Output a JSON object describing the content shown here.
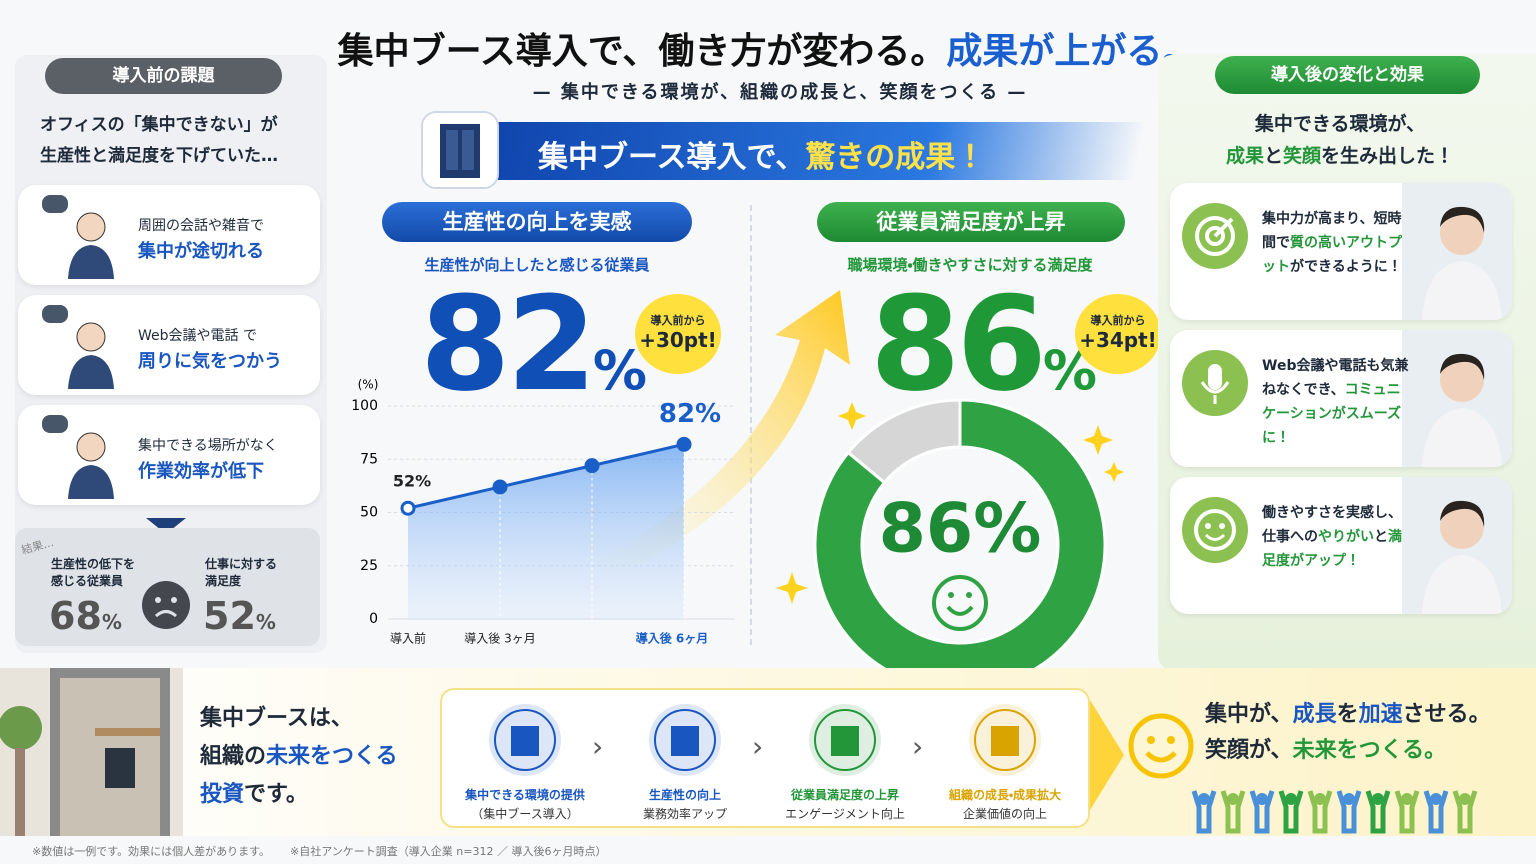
{
  "header": {
    "title": "集中ブース導入で、働き方が変わる。",
    "title_accent": "成果が上がる。",
    "subtitle": "集中できる環境が、組織の成長と、笑顔をつくる"
  },
  "before": {
    "title": "導入前の課題",
    "lead": [
      "オフィスの「集中できない」が",
      "生産性と満足度を下げていた…"
    ],
    "items": [
      {
        "text": "周囲の会話や雑音で",
        "highlight": "集中が途切れる"
      },
      {
        "text": "Web会議や電話 で",
        "highlight": "周りに気をつかう"
      },
      {
        "text": "集中できる場所がなく",
        "highlight": "作業効率が低下"
      }
    ],
    "result": {
      "label": "結果…",
      "stats": [
        {
          "label": [
            "生産性の低下を",
            "感じる従業員"
          ],
          "value": 68,
          "unit": "%"
        },
        {
          "label": [
            "仕事に対する",
            "満足度"
          ],
          "value": 52,
          "unit": "%"
        }
      ]
    }
  },
  "banner": {
    "text": "集中ブース導入で、",
    "accent": "驚きの成果！"
  },
  "productivity": {
    "title": "生産性の向上を実感",
    "subtitle": "生産性が向上したと感じる従業員",
    "value": 82,
    "unit": "%",
    "badge": [
      "導入前から",
      "+30pt!"
    ]
  },
  "satisfaction": {
    "title": "従業員満足度が上昇",
    "subtitle": "職場環境・働きやすさに対する満足度",
    "value": 86,
    "unit": "%",
    "badge": [
      "導入前から",
      "+34pt!"
    ]
  },
  "chart_data": [
    {
      "type": "line",
      "y_label": "(%)",
      "categories": [
        "導入前",
        "導入後 3ヶ月",
        null,
        "導入後 6ヶ月"
      ],
      "values": [
        52,
        62,
        72,
        82
      ],
      "value_labels": [
        "52%",
        null,
        null,
        "82%"
      ],
      "color": "#1a5fc8",
      "ylim": [
        0,
        100
      ],
      "yticks": [
        0,
        25,
        50,
        75,
        100
      ],
      "grid": true
    },
    {
      "type": "donut",
      "values": [
        86,
        14
      ],
      "colors": [
        "#2fa344",
        "#d6d6d6"
      ],
      "value_labels": [
        "86%",
        null
      ]
    }
  ],
  "after": {
    "title": "導入後の変化と効果",
    "lead": [
      [
        {
          "text": "集中できる環境が、"
        }
      ],
      [
        {
          "text": "成果",
          "em": "green"
        },
        {
          "text": "と"
        },
        {
          "text": "笑顔",
          "em": "green"
        },
        {
          "text": "を生み出した！"
        }
      ]
    ],
    "items": [
      [
        {
          "text": "集中力が高まり、短時間で"
        },
        {
          "text": "質の高いアウトプット",
          "em": "green"
        },
        {
          "text": "ができるように！"
        }
      ],
      [
        {
          "text": "Web会議や電話も気兼ねなくでき、"
        },
        {
          "text": "コミュニケーションがスムーズに！",
          "em": "green"
        }
      ],
      [
        {
          "text": "働きやすさを実感し、仕事への"
        },
        {
          "text": "やりがい",
          "em": "green"
        },
        {
          "text": "と"
        },
        {
          "text": "満足度がアップ！",
          "em": "green"
        }
      ]
    ]
  },
  "bottom": {
    "message": [
      [
        {
          "text": "集中ブースは、"
        }
      ],
      [
        {
          "text": "組織の"
        },
        {
          "text": "未来をつくる",
          "em": "blue"
        }
      ],
      [
        {
          "text": "投資",
          "em": "blue"
        },
        {
          "text": "です。"
        }
      ]
    ],
    "flow": [
      {
        "title": "集中できる環境の提供",
        "sub": "（集中ブース導入）"
      },
      {
        "title": "生産性の向上",
        "sub": "業務効率アップ"
      },
      {
        "title": "従業員満足度の上昇",
        "sub": "エンゲージメント向上"
      },
      {
        "title": "組織の成長・成果拡大",
        "sub": "企業価値の向上"
      }
    ],
    "closing": [
      [
        {
          "text": "集中が、"
        },
        {
          "text": "成長",
          "em": "blue"
        },
        {
          "text": "を"
        },
        {
          "text": "加速",
          "em": "blue"
        },
        {
          "text": "させる。"
        }
      ],
      [
        {
          "text": "笑顔が、"
        },
        {
          "text": "未来をつくる。",
          "em": "green"
        }
      ]
    ]
  },
  "footnotes": [
    "※数値は一例です。効果には個人差があります。",
    "※自社アンケート調査（導入企業 n=312 ／ 導入後6ヶ月時点）"
  ]
}
